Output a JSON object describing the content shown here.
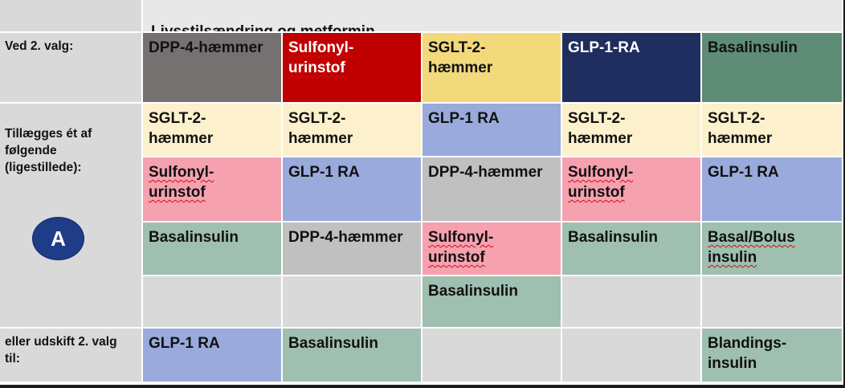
{
  "title": "Livsstilsændring og metformin",
  "labels": {
    "second_choice": "Ved 2. valg:",
    "add_one": "Tillægges ét af\nfølgende\n(ligestillede):",
    "replace": "eller udskift 2. valg\ntil:",
    "marker": "A"
  },
  "second_choice": [
    {
      "text": "DPP-4-hæmmer",
      "color": "#767171"
    },
    {
      "text": "Sulfonyl-\nurinstof",
      "color": "#c00000"
    },
    {
      "text": "SGLT-2-\nhæmmer",
      "color": "#f2d97b"
    },
    {
      "text": "GLP-1-RA",
      "color": "#1f2e5e"
    },
    {
      "text": "Basalinsulin",
      "color": "#5e8c76"
    }
  ],
  "add_rows": [
    [
      {
        "text": "SGLT-2-\nhæmmer"
      },
      {
        "text": "SGLT-2-\nhæmmer"
      },
      {
        "text": "GLP-1 RA"
      },
      {
        "text": "SGLT-2-\nhæmmer"
      },
      {
        "text": "SGLT-2-\nhæmmer"
      }
    ],
    [
      {
        "text": "Sulfonyl-\nurinstof"
      },
      {
        "text": "GLP-1 RA"
      },
      {
        "text": "DPP-4-hæmmer"
      },
      {
        "text": "Sulfonyl-\nurinstof"
      },
      {
        "text": "GLP-1 RA"
      }
    ],
    [
      {
        "text": "Basalinsulin"
      },
      {
        "text": "DPP-4-hæmmer"
      },
      {
        "text": "Sulfonyl-\nurinstof"
      },
      {
        "text": "Basalinsulin"
      },
      {
        "text": "Basal/Bolus\ninsulin"
      }
    ],
    [
      {
        "text": ""
      },
      {
        "text": ""
      },
      {
        "text": "Basalinsulin"
      },
      {
        "text": ""
      },
      {
        "text": ""
      }
    ]
  ],
  "replace_row": [
    {
      "text": "GLP-1 RA"
    },
    {
      "text": "Basalinsulin"
    },
    {
      "text": ""
    },
    {
      "text": ""
    },
    {
      "text": "Blandings-\ninsulin"
    }
  ]
}
